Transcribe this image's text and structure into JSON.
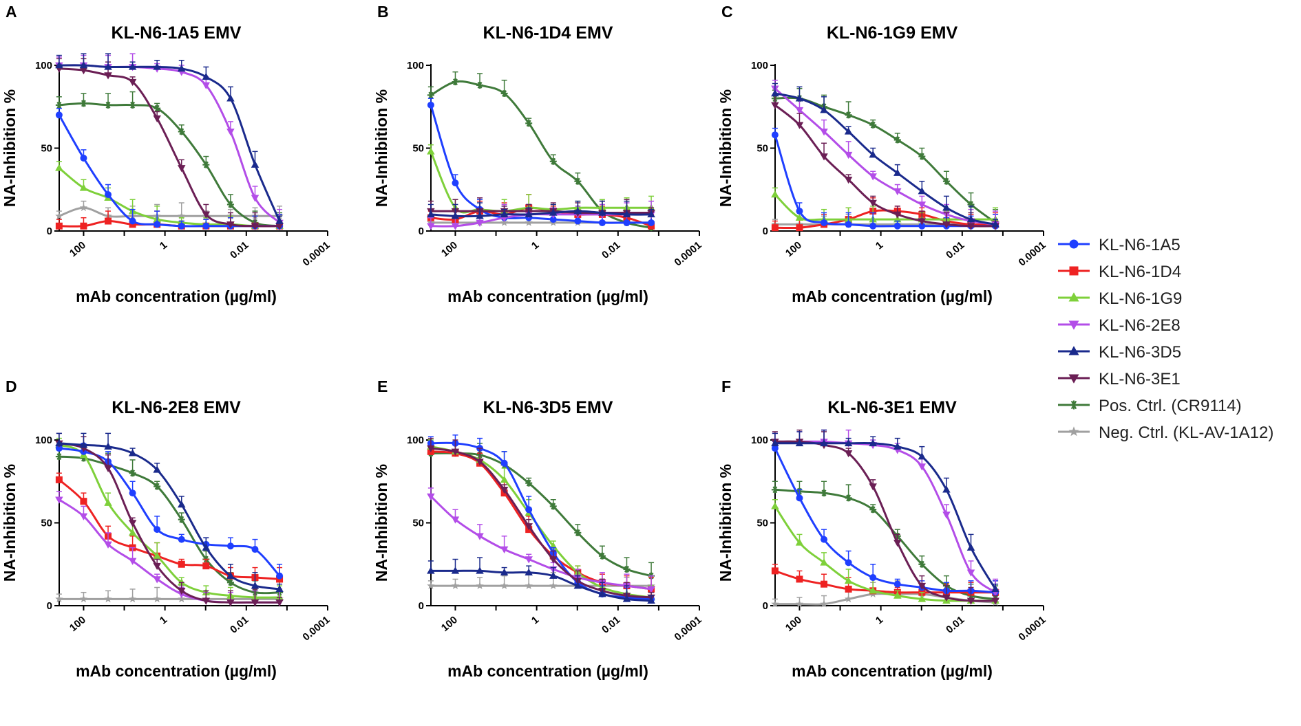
{
  "chart_data": {
    "type": "line",
    "x_label": "mAb concentration (µg/ml)",
    "y_label": "NA-Inhibition %",
    "x_ticks": [
      {
        "value": 100,
        "label": "100"
      },
      {
        "value": 1,
        "label": "1"
      },
      {
        "value": 0.01,
        "label": "0.01"
      },
      {
        "value": 0.0001,
        "label": "0.0001"
      }
    ],
    "y_ticks": [
      {
        "value": 0,
        "label": "0"
      },
      {
        "value": 50,
        "label": "50"
      },
      {
        "value": 100,
        "label": "100"
      }
    ],
    "xlim_log10": [
      2.6,
      -4.0
    ],
    "ylim": [
      0,
      100
    ],
    "x_points": [
      400,
      100,
      25,
      6.25,
      1.5625,
      0.390625,
      0.09765625,
      0.0244140625,
      0.006103515625,
      0.00152587890625
    ],
    "legend": [
      {
        "key": "1A5",
        "label": "KL-N6-1A5",
        "color": "#1f3fff",
        "marker": "circle"
      },
      {
        "key": "1D4",
        "label": "KL-N6-1D4",
        "color": "#ee2222",
        "marker": "square"
      },
      {
        "key": "1G9",
        "label": "KL-N6-1G9",
        "color": "#7ed03a",
        "marker": "triangle-up"
      },
      {
        "key": "2E8",
        "label": "KL-N6-2E8",
        "color": "#b34de8",
        "marker": "triangle-down"
      },
      {
        "key": "3D5",
        "label": "KL-N6-3D5",
        "color": "#1a2a8c",
        "marker": "triangle-up"
      },
      {
        "key": "3E1",
        "label": "KL-N6-3E1",
        "color": "#6b1f55",
        "marker": "triangle-down"
      },
      {
        "key": "POS",
        "label": "Pos. Ctrl. (CR9114)",
        "color": "#3f7a3a",
        "marker": "asterisk"
      },
      {
        "key": "NEG",
        "label": "Neg. Ctrl. (KL-AV-1A12)",
        "color": "#a0a0a0",
        "marker": "star"
      }
    ],
    "panels": [
      {
        "letter": "A",
        "title": "KL-N6-1A5 EMV",
        "series": {
          "1A5": [
            70,
            44,
            22,
            6,
            4,
            3,
            3,
            3,
            3,
            3
          ],
          "1D4": [
            3,
            3,
            6,
            4,
            4,
            3,
            3,
            3,
            3,
            3
          ],
          "1G9": [
            38,
            26,
            20,
            12,
            7,
            5,
            4,
            4,
            3,
            3
          ],
          "2E8": [
            100,
            100,
            99,
            99,
            98,
            96,
            88,
            60,
            20,
            5
          ],
          "3D5": [
            100,
            100,
            99,
            99,
            99,
            98,
            93,
            80,
            40,
            6
          ],
          "3E1": [
            98,
            97,
            94,
            90,
            68,
            38,
            10,
            4,
            3,
            3
          ],
          "POS": [
            76,
            77,
            76,
            76,
            74,
            60,
            40,
            16,
            5,
            3
          ],
          "NEG": [
            9,
            14,
            9,
            9,
            9,
            9,
            9,
            9,
            9,
            9
          ]
        }
      },
      {
        "letter": "B",
        "title": "KL-N6-1D4 EMV",
        "series": {
          "1A5": [
            76,
            29,
            13,
            8,
            8,
            7,
            6,
            5,
            5,
            5
          ],
          "1D4": [
            8,
            7,
            12,
            10,
            14,
            12,
            10,
            10,
            8,
            3
          ],
          "1G9": [
            48,
            14,
            13,
            12,
            14,
            13,
            14,
            14,
            14,
            14
          ],
          "2E8": [
            3,
            3,
            5,
            8,
            10,
            10,
            10,
            10,
            10,
            10
          ],
          "3D5": [
            10,
            9,
            9,
            10,
            10,
            11,
            12,
            11,
            10,
            10
          ],
          "3E1": [
            12,
            12,
            12,
            12,
            12,
            12,
            11,
            11,
            11,
            11
          ],
          "POS": [
            82,
            90,
            88,
            83,
            65,
            42,
            30,
            12,
            5,
            2
          ],
          "NEG": [
            5,
            5,
            5,
            5,
            5,
            5,
            5,
            5,
            5,
            5
          ]
        }
      },
      {
        "letter": "C",
        "title": "KL-N6-1G9 EMV",
        "series": {
          "1A5": [
            58,
            12,
            5,
            4,
            3,
            3,
            3,
            3,
            3,
            3
          ],
          "1D4": [
            2,
            2,
            4,
            7,
            12,
            12,
            10,
            6,
            4,
            4
          ],
          "1G9": [
            22,
            8,
            7,
            7,
            7,
            7,
            7,
            7,
            7,
            7
          ],
          "2E8": [
            86,
            73,
            60,
            46,
            33,
            24,
            16,
            10,
            6,
            4
          ],
          "3D5": [
            83,
            80,
            73,
            60,
            46,
            35,
            24,
            14,
            7,
            4
          ],
          "3E1": [
            76,
            64,
            45,
            31,
            17,
            10,
            6,
            4,
            3,
            3
          ],
          "POS": [
            80,
            80,
            75,
            70,
            64,
            55,
            45,
            30,
            16,
            5
          ],
          "NEG": [
            4,
            4,
            4,
            4,
            4,
            4,
            4,
            4,
            4,
            4
          ]
        }
      },
      {
        "letter": "D",
        "title": "KL-N6-2E8 EMV",
        "series": {
          "1A5": [
            95,
            93,
            87,
            68,
            46,
            40,
            37,
            36,
            34,
            18
          ],
          "1D4": [
            76,
            63,
            42,
            35,
            30,
            25,
            24,
            18,
            17,
            16
          ],
          "1G9": [
            97,
            91,
            62,
            44,
            30,
            14,
            8,
            6,
            5,
            5
          ],
          "2E8": [
            64,
            54,
            37,
            27,
            16,
            7,
            3,
            2,
            2,
            2
          ],
          "3D5": [
            98,
            97,
            96,
            92,
            82,
            61,
            35,
            18,
            12,
            10
          ],
          "3E1": [
            98,
            95,
            83,
            50,
            24,
            9,
            3,
            2,
            2,
            2
          ],
          "POS": [
            90,
            89,
            85,
            80,
            72,
            52,
            28,
            14,
            8,
            8
          ],
          "NEG": [
            4,
            4,
            4,
            4,
            4,
            4,
            4,
            4,
            4,
            4
          ]
        }
      },
      {
        "letter": "E",
        "title": "KL-N6-3D5 EMV",
        "series": {
          "1A5": [
            98,
            98,
            95,
            86,
            58,
            32,
            14,
            7,
            5,
            4
          ],
          "1D4": [
            93,
            92,
            86,
            68,
            46,
            30,
            20,
            14,
            12,
            10
          ],
          "1G9": [
            96,
            93,
            88,
            76,
            56,
            36,
            20,
            11,
            7,
            5
          ],
          "2E8": [
            66,
            52,
            42,
            34,
            28,
            22,
            17,
            14,
            12,
            10
          ],
          "3D5": [
            21,
            21,
            21,
            20,
            20,
            18,
            12,
            7,
            4,
            3
          ],
          "3E1": [
            95,
            93,
            87,
            70,
            48,
            28,
            15,
            9,
            6,
            5
          ],
          "POS": [
            92,
            92,
            91,
            85,
            74,
            60,
            44,
            30,
            22,
            18
          ],
          "NEG": [
            12,
            12,
            12,
            12,
            12,
            12,
            12,
            12,
            12,
            12
          ]
        }
      },
      {
        "letter": "F",
        "title": "KL-N6-3E1 EMV",
        "series": {
          "1A5": [
            95,
            65,
            40,
            26,
            17,
            13,
            11,
            9,
            9,
            8
          ],
          "1D4": [
            21,
            16,
            13,
            10,
            9,
            8,
            8,
            8,
            8,
            8
          ],
          "1G9": [
            60,
            38,
            26,
            15,
            9,
            6,
            4,
            3,
            3,
            3
          ],
          "2E8": [
            99,
            99,
            99,
            98,
            97,
            94,
            84,
            55,
            20,
            8
          ],
          "3D5": [
            98,
            98,
            98,
            98,
            98,
            96,
            90,
            70,
            35,
            10
          ],
          "3E1": [
            99,
            99,
            97,
            92,
            72,
            38,
            12,
            5,
            3,
            3
          ],
          "POS": [
            70,
            69,
            68,
            65,
            58,
            42,
            25,
            12,
            6,
            4
          ],
          "NEG": [
            1,
            1,
            1,
            4,
            7,
            7,
            7,
            5,
            3,
            2
          ]
        }
      }
    ]
  }
}
